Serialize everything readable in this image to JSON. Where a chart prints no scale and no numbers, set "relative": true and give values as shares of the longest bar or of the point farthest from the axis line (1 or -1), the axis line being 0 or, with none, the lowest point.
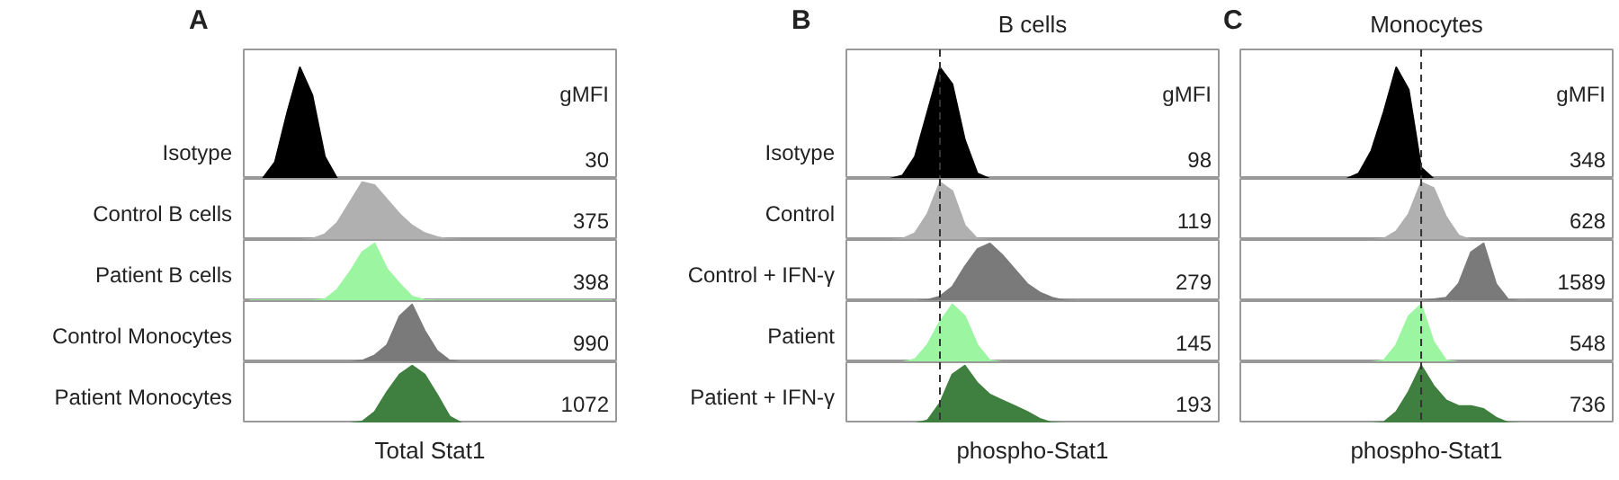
{
  "chart_data": [
    {
      "type": "area",
      "relative": true,
      "title": "A",
      "categories": [
        null,
        null,
        null,
        null,
        null,
        null,
        null,
        null,
        null,
        null,
        null,
        null,
        null,
        null,
        null,
        null,
        null,
        null,
        null,
        null,
        null,
        null,
        null,
        null,
        null,
        null,
        null,
        null,
        null,
        null
      ],
      "series": [
        {
          "name": "Isotype",
          "color": "#000000",
          "values": [
            0,
            0,
            0.15,
            0.6,
            1.0,
            0.75,
            0.2,
            0,
            0,
            0,
            0,
            0,
            0,
            0,
            0,
            0,
            0,
            0,
            0,
            0,
            0,
            0,
            0,
            0,
            0,
            0,
            0,
            0,
            0,
            0
          ]
        }
      ],
      "annotations": [
        "gMFI",
        "30"
      ]
    },
    {
      "type": "area",
      "relative": true,
      "categories": [
        null,
        null,
        null,
        null,
        null,
        null,
        null,
        null,
        null,
        null,
        null,
        null,
        null,
        null,
        null,
        null,
        null,
        null,
        null,
        null,
        null,
        null,
        null,
        null,
        null,
        null,
        null,
        null,
        null,
        null
      ],
      "series": [
        {
          "name": "Control B cells",
          "color": "#b0b0b0",
          "values": [
            0,
            0,
            0,
            0,
            0,
            0.02,
            0.1,
            0.3,
            0.65,
            1.0,
            0.95,
            0.7,
            0.45,
            0.25,
            0.12,
            0.05,
            0.01,
            0,
            0,
            0,
            0,
            0,
            0,
            0,
            0,
            0,
            0,
            0,
            0,
            0
          ]
        }
      ],
      "annotations": [
        "375"
      ]
    },
    {
      "type": "area",
      "relative": true,
      "categories": [
        null,
        null,
        null,
        null,
        null,
        null,
        null,
        null,
        null,
        null,
        null,
        null,
        null,
        null,
        null,
        null,
        null,
        null,
        null,
        null,
        null,
        null,
        null,
        null,
        null,
        null,
        null,
        null,
        null,
        null
      ],
      "series": [
        {
          "name": "Patient B cells",
          "color": "#9cf5a0",
          "values": [
            0.01,
            0.01,
            0.01,
            0.01,
            0.01,
            0.01,
            0.03,
            0.2,
            0.5,
            0.85,
            1.0,
            0.55,
            0.3,
            0.08,
            0.02,
            0.01,
            0.01,
            0.01,
            0.01,
            0.01,
            0.01,
            0.01,
            0.01,
            0.01,
            0.01,
            0.01,
            0.01,
            0.01,
            0.01,
            0.01
          ]
        }
      ],
      "annotations": [
        "398"
      ]
    },
    {
      "type": "area",
      "relative": true,
      "categories": [
        null,
        null,
        null,
        null,
        null,
        null,
        null,
        null,
        null,
        null,
        null,
        null,
        null,
        null,
        null,
        null,
        null,
        null,
        null,
        null,
        null,
        null,
        null,
        null,
        null,
        null,
        null,
        null,
        null,
        null
      ],
      "series": [
        {
          "name": "Control Monocytes",
          "color": "#7a7a7a",
          "values": [
            0,
            0,
            0,
            0,
            0,
            0,
            0,
            0,
            0,
            0.03,
            0.12,
            0.3,
            0.8,
            1.0,
            0.55,
            0.2,
            0.03,
            0,
            0,
            0,
            0,
            0,
            0,
            0,
            0,
            0,
            0,
            0,
            0,
            0
          ]
        }
      ],
      "annotations": [
        "990"
      ]
    },
    {
      "type": "area",
      "relative": true,
      "xlabel": "Total Stat1",
      "categories": [
        null,
        null,
        null,
        null,
        null,
        null,
        null,
        null,
        null,
        null,
        null,
        null,
        null,
        null,
        null,
        null,
        null,
        null,
        null,
        null,
        null,
        null,
        null,
        null,
        null,
        null,
        null,
        null,
        null,
        null
      ],
      "series": [
        {
          "name": "Patient Monocytes",
          "color": "#3f7f3f",
          "values": [
            0,
            0,
            0,
            0,
            0,
            0,
            0,
            0,
            0,
            0.03,
            0.2,
            0.55,
            0.85,
            1.0,
            0.85,
            0.5,
            0.12,
            0,
            0,
            0,
            0,
            0,
            0,
            0,
            0,
            0,
            0,
            0,
            0,
            0
          ]
        }
      ],
      "annotations": [
        "1072"
      ]
    },
    {
      "type": "area",
      "relative": true,
      "title": "B",
      "subtitle": "B cells",
      "categories": [
        null,
        null,
        null,
        null,
        null,
        null,
        null,
        null,
        null,
        null,
        null,
        null,
        null,
        null,
        null,
        null,
        null,
        null,
        null,
        null,
        null,
        null,
        null,
        null,
        null,
        null,
        null,
        null,
        null,
        null
      ],
      "series": [
        {
          "name": "Isotype",
          "color": "#000000",
          "values": [
            0,
            0,
            0,
            0,
            0.03,
            0.2,
            0.6,
            1.0,
            0.85,
            0.35,
            0.05,
            0,
            0,
            0,
            0,
            0,
            0,
            0,
            0,
            0,
            0,
            0,
            0,
            0,
            0,
            0,
            0,
            0,
            0,
            0
          ]
        }
      ],
      "annotations": [
        "gMFI",
        "98"
      ]
    },
    {
      "type": "area",
      "relative": true,
      "categories": [
        null,
        null,
        null,
        null,
        null,
        null,
        null,
        null,
        null,
        null,
        null,
        null,
        null,
        null,
        null,
        null,
        null,
        null,
        null,
        null,
        null,
        null,
        null,
        null,
        null,
        null,
        null,
        null,
        null,
        null
      ],
      "series": [
        {
          "name": "Control",
          "color": "#b0b0b0",
          "values": [
            0,
            0,
            0,
            0,
            0.02,
            0.12,
            0.45,
            1.0,
            0.85,
            0.25,
            0.02,
            0,
            0,
            0,
            0,
            0,
            0,
            0,
            0,
            0,
            0,
            0,
            0,
            0,
            0,
            0,
            0,
            0,
            0,
            0
          ]
        }
      ],
      "annotations": [
        "119"
      ]
    },
    {
      "type": "area",
      "relative": true,
      "categories": [
        null,
        null,
        null,
        null,
        null,
        null,
        null,
        null,
        null,
        null,
        null,
        null,
        null,
        null,
        null,
        null,
        null,
        null,
        null,
        null,
        null,
        null,
        null,
        null,
        null,
        null,
        null,
        null,
        null,
        null
      ],
      "series": [
        {
          "name": "Control + IFN-γ",
          "color": "#7a7a7a",
          "values": [
            0,
            0,
            0,
            0,
            0,
            0,
            0.02,
            0.08,
            0.25,
            0.6,
            0.9,
            1.0,
            0.8,
            0.55,
            0.3,
            0.15,
            0.06,
            0.01,
            0,
            0,
            0,
            0,
            0,
            0,
            0,
            0,
            0,
            0,
            0,
            0
          ]
        }
      ],
      "annotations": [
        "279"
      ]
    },
    {
      "type": "area",
      "relative": true,
      "categories": [
        null,
        null,
        null,
        null,
        null,
        null,
        null,
        null,
        null,
        null,
        null,
        null,
        null,
        null,
        null,
        null,
        null,
        null,
        null,
        null,
        null,
        null,
        null,
        null,
        null,
        null,
        null,
        null,
        null,
        null
      ],
      "series": [
        {
          "name": "Patient",
          "color": "#9cf5a0",
          "values": [
            0,
            0,
            0,
            0,
            0,
            0.05,
            0.3,
            0.7,
            1.0,
            0.8,
            0.3,
            0.03,
            0,
            0,
            0,
            0,
            0,
            0,
            0,
            0,
            0,
            0,
            0,
            0,
            0,
            0,
            0,
            0,
            0,
            0
          ]
        }
      ],
      "annotations": [
        "145"
      ]
    },
    {
      "type": "area",
      "relative": true,
      "xlabel": "phospho-Stat1",
      "categories": [
        null,
        null,
        null,
        null,
        null,
        null,
        null,
        null,
        null,
        null,
        null,
        null,
        null,
        null,
        null,
        null,
        null,
        null,
        null,
        null,
        null,
        null,
        null,
        null,
        null,
        null,
        null,
        null,
        null,
        null
      ],
      "series": [
        {
          "name": "Patient + IFN-γ",
          "color": "#3f7f3f",
          "values": [
            0,
            0,
            0,
            0,
            0,
            0,
            0.05,
            0.35,
            0.85,
            1.0,
            0.7,
            0.5,
            0.4,
            0.3,
            0.2,
            0.08,
            0.01,
            0,
            0,
            0,
            0,
            0,
            0,
            0,
            0,
            0,
            0,
            0,
            0,
            0
          ]
        }
      ],
      "annotations": [
        "193"
      ]
    },
    {
      "type": "area",
      "relative": true,
      "title": "C",
      "subtitle": "Monocytes",
      "categories": [
        null,
        null,
        null,
        null,
        null,
        null,
        null,
        null,
        null,
        null,
        null,
        null,
        null,
        null,
        null,
        null,
        null,
        null,
        null,
        null,
        null,
        null,
        null,
        null,
        null,
        null,
        null,
        null,
        null,
        null
      ],
      "series": [
        {
          "color": "#000000",
          "values": [
            0,
            0,
            0,
            0,
            0,
            0,
            0,
            0,
            0,
            0.05,
            0.25,
            0.6,
            1.0,
            0.8,
            0.1,
            0,
            0,
            0,
            0,
            0,
            0,
            0,
            0,
            0,
            0,
            0,
            0,
            0,
            0,
            0
          ]
        }
      ],
      "annotations": [
        "gMFI",
        "348"
      ]
    },
    {
      "type": "area",
      "relative": true,
      "categories": [
        null,
        null,
        null,
        null,
        null,
        null,
        null,
        null,
        null,
        null,
        null,
        null,
        null,
        null,
        null,
        null,
        null,
        null,
        null,
        null,
        null,
        null,
        null,
        null,
        null,
        null,
        null,
        null,
        null,
        null
      ],
      "series": [
        {
          "color": "#b0b0b0",
          "values": [
            0,
            0,
            0,
            0,
            0,
            0,
            0,
            0,
            0,
            0,
            0,
            0.02,
            0.15,
            0.45,
            1.0,
            0.9,
            0.4,
            0.08,
            0,
            0,
            0,
            0,
            0,
            0,
            0,
            0,
            0,
            0,
            0,
            0
          ]
        }
      ],
      "annotations": [
        "628"
      ]
    },
    {
      "type": "area",
      "relative": true,
      "categories": [
        null,
        null,
        null,
        null,
        null,
        null,
        null,
        null,
        null,
        null,
        null,
        null,
        null,
        null,
        null,
        null,
        null,
        null,
        null,
        null,
        null,
        null,
        null,
        null,
        null,
        null,
        null,
        null,
        null,
        null
      ],
      "series": [
        {
          "color": "#7a7a7a",
          "values": [
            0,
            0,
            0,
            0,
            0,
            0,
            0,
            0,
            0,
            0,
            0,
            0,
            0,
            0,
            0,
            0.03,
            0.06,
            0.3,
            0.85,
            1.0,
            0.3,
            0.02,
            0,
            0,
            0,
            0,
            0,
            0,
            0,
            0
          ]
        }
      ],
      "annotations": [
        "1589"
      ]
    },
    {
      "type": "area",
      "relative": true,
      "categories": [
        null,
        null,
        null,
        null,
        null,
        null,
        null,
        null,
        null,
        null,
        null,
        null,
        null,
        null,
        null,
        null,
        null,
        null,
        null,
        null,
        null,
        null,
        null,
        null,
        null,
        null,
        null,
        null,
        null,
        null
      ],
      "series": [
        {
          "color": "#9cf5a0",
          "values": [
            0,
            0,
            0,
            0,
            0,
            0,
            0,
            0,
            0,
            0,
            0,
            0.03,
            0.3,
            0.8,
            1.0,
            0.35,
            0.03,
            0,
            0,
            0,
            0,
            0,
            0,
            0,
            0,
            0,
            0,
            0,
            0,
            0
          ]
        }
      ],
      "annotations": [
        "548"
      ]
    },
    {
      "type": "area",
      "relative": true,
      "xlabel": "phospho-Stat1",
      "categories": [
        null,
        null,
        null,
        null,
        null,
        null,
        null,
        null,
        null,
        null,
        null,
        null,
        null,
        null,
        null,
        null,
        null,
        null,
        null,
        null,
        null,
        null,
        null,
        null,
        null,
        null,
        null,
        null,
        null,
        null
      ],
      "series": [
        {
          "color": "#3f7f3f",
          "values": [
            0,
            0,
            0,
            0,
            0,
            0,
            0,
            0,
            0,
            0,
            0,
            0.02,
            0.2,
            0.55,
            1.0,
            0.65,
            0.4,
            0.3,
            0.3,
            0.25,
            0.1,
            0.01,
            0,
            0,
            0,
            0,
            0,
            0,
            0,
            0
          ]
        }
      ],
      "annotations": [
        "736"
      ]
    }
  ]
}
